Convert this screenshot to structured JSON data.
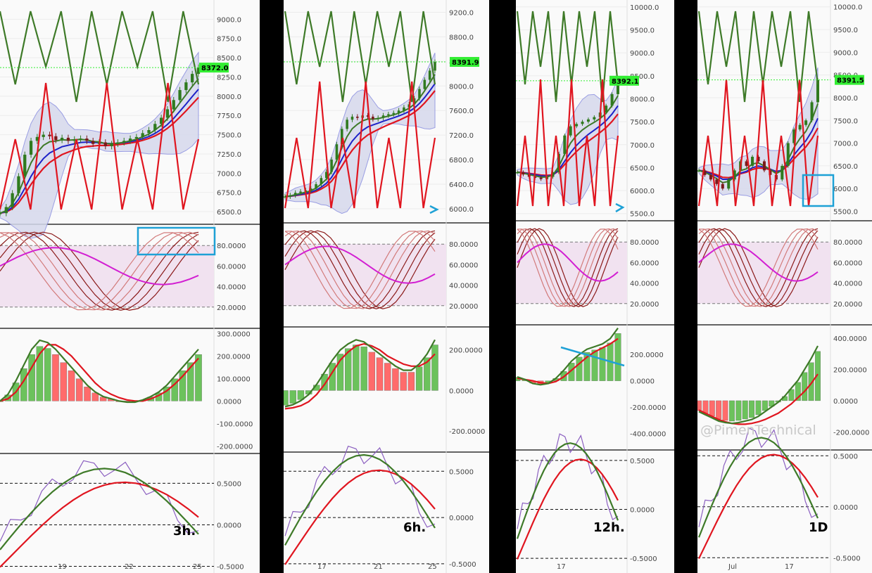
{
  "watermark": "@PimenTechnical",
  "colors": {
    "green": "#3e7a28",
    "red": "#e0151f",
    "darkred": "#8b1a1a",
    "blue": "#1e22c8",
    "band_fill": "#d6d9ec",
    "rsi_fill": "#f1e2f0",
    "magenta": "#d21fd2",
    "hist_red": "#ff6b6b",
    "hist_green": "#6cc25c",
    "price_tag": "#33ee33",
    "cyan": "#1ea1d6"
  },
  "chart_data": [
    {
      "type": "line",
      "timeframe": "3h.",
      "current_price": "8372.0",
      "price_ticks": [
        "9000.0",
        "8750.0",
        "8500.0",
        "8250.0",
        "8000.0",
        "7750.0",
        "7500.0",
        "7250.0",
        "7000.0",
        "6750.0",
        "6500.0"
      ],
      "price_range": [
        6400,
        9250
      ],
      "close": [
        6480,
        6560,
        6740,
        6960,
        7240,
        7420,
        7470,
        7500,
        7480,
        7430,
        7460,
        7420,
        7440,
        7450,
        7420,
        7380,
        7400,
        7350,
        7380,
        7400,
        7420,
        7450,
        7470,
        7520,
        7560,
        7640,
        7720,
        7830,
        7950,
        8080,
        8180,
        8290,
        8372
      ],
      "stoch_ticks": [
        "80.0000",
        "60.0000",
        "40.0000",
        "20.0000"
      ],
      "macd_ticks": [
        "300.0000",
        "200.0000",
        "100.0000",
        "0.0000",
        "-100.0000",
        "-200.0000"
      ],
      "macd_range": [
        -230,
        320
      ],
      "macd": [
        0,
        30,
        90,
        160,
        230,
        270,
        260,
        230,
        190,
        150,
        110,
        70,
        40,
        20,
        10,
        0,
        -5,
        -5,
        5,
        20,
        40,
        70,
        110,
        150,
        190,
        230
      ],
      "macd_signal": [
        0,
        10,
        40,
        90,
        150,
        210,
        250,
        250,
        230,
        200,
        160,
        120,
        80,
        50,
        30,
        15,
        5,
        0,
        0,
        10,
        25,
        45,
        75,
        110,
        150,
        190
      ],
      "osc_ticks": [
        "0.5000",
        "0.0000",
        "-0.5000"
      ],
      "osc_range": [
        -0.58,
        0.85
      ],
      "x_ticks": [
        "19",
        "22",
        "25"
      ]
    },
    {
      "type": "line",
      "timeframe": "6h.",
      "current_price": "8391.9",
      "price_ticks": [
        "9200.0",
        "8800.0",
        "8400.0",
        "8000.0",
        "7600.0",
        "7200.0",
        "6800.0",
        "6400.0",
        "6000.0"
      ],
      "price_range": [
        5850,
        9400
      ],
      "close": [
        6200,
        6220,
        6260,
        6280,
        6300,
        6330,
        6400,
        6500,
        6600,
        6800,
        7050,
        7300,
        7450,
        7500,
        7480,
        7520,
        7500,
        7460,
        7480,
        7520,
        7540,
        7560,
        7600,
        7650,
        7700,
        7800,
        7950,
        8100,
        8250,
        8391
      ],
      "stoch_ticks": [
        "80.0000",
        "60.0000",
        "40.0000",
        "20.0000"
      ],
      "macd_ticks": [
        "200.0000",
        "0.0000",
        "-200.0000"
      ],
      "macd_range": [
        -300,
        310
      ],
      "macd": [
        -80,
        -70,
        -50,
        -20,
        30,
        90,
        150,
        200,
        230,
        250,
        240,
        210,
        180,
        150,
        120,
        100,
        100,
        130,
        180,
        250
      ],
      "macd_signal": [
        -90,
        -85,
        -75,
        -55,
        -20,
        30,
        90,
        150,
        190,
        220,
        230,
        220,
        200,
        170,
        150,
        130,
        120,
        120,
        140,
        180
      ],
      "osc_ticks": [
        "0.5000",
        "0.0000",
        "-0.5000"
      ],
      "osc_range": [
        -0.6,
        0.7
      ],
      "x_ticks": [
        "17",
        "21",
        "25"
      ]
    },
    {
      "type": "line",
      "timeframe": "12h.",
      "current_price": "8392.1",
      "price_ticks": [
        "10000.0",
        "9500.0",
        "9000.0",
        "8500.0",
        "8000.0",
        "7500.0",
        "7000.0",
        "6500.0",
        "6000.0",
        "5500.0"
      ],
      "price_range": [
        5450,
        10150
      ],
      "close": [
        6400,
        6350,
        6300,
        6280,
        6250,
        6300,
        6400,
        6800,
        7200,
        7400,
        7450,
        7500,
        7550,
        7600,
        7700,
        7850,
        8100,
        8392
      ],
      "stoch_ticks": [
        "80.0000",
        "60.0000",
        "40.0000",
        "20.0000"
      ],
      "macd_ticks": [
        "200.0000",
        "0.0000",
        "-200.0000",
        "-400.0000"
      ],
      "macd_range": [
        -520,
        420
      ],
      "macd": [
        30,
        10,
        -20,
        -30,
        -20,
        20,
        80,
        150,
        200,
        240,
        260,
        280,
        320,
        400
      ],
      "macd_signal": [
        20,
        10,
        0,
        -15,
        -20,
        -5,
        30,
        80,
        130,
        180,
        220,
        250,
        280,
        320
      ],
      "osc_ticks": [
        "0.5000",
        "0.0000",
        "-0.5000"
      ],
      "osc_range": [
        -0.65,
        0.6
      ],
      "x_ticks": [
        "17"
      ]
    },
    {
      "type": "line",
      "timeframe": "1D",
      "current_price": "8391.5",
      "price_ticks": [
        "10000.0",
        "9500.0",
        "9000.0",
        "8500.0",
        "8000.0",
        "7500.0",
        "7000.0",
        "6500.0",
        "6000.0",
        "5500.0"
      ],
      "price_range": [
        5400,
        10150
      ],
      "close": [
        6400,
        6300,
        6200,
        6100,
        6000,
        6200,
        6400,
        6600,
        6500,
        6700,
        6600,
        6400,
        6300,
        6200,
        6500,
        7000,
        7300,
        7400,
        7500,
        7900,
        8391
      ],
      "stoch_ticks": [
        "80.0000",
        "60.0000",
        "40.0000",
        "20.0000"
      ],
      "macd_ticks": [
        "400.0000",
        "200.0000",
        "0.0000",
        "-200.0000"
      ],
      "macd_range": [
        -310,
        480
      ],
      "macd": [
        -70,
        -90,
        -110,
        -130,
        -140,
        -145,
        -140,
        -130,
        -120,
        -100,
        -70,
        -40,
        -10,
        30,
        80,
        130,
        200,
        270,
        350
      ],
      "macd_signal": [
        -60,
        -80,
        -100,
        -120,
        -135,
        -145,
        -150,
        -150,
        -145,
        -135,
        -120,
        -100,
        -80,
        -50,
        -20,
        20,
        60,
        110,
        170
      ],
      "osc_ticks": [
        "0.5000",
        "0.0000",
        "-0.5000"
      ],
      "osc_range": [
        -0.65,
        0.55
      ],
      "x_ticks": [
        "Jul",
        "17"
      ]
    }
  ]
}
